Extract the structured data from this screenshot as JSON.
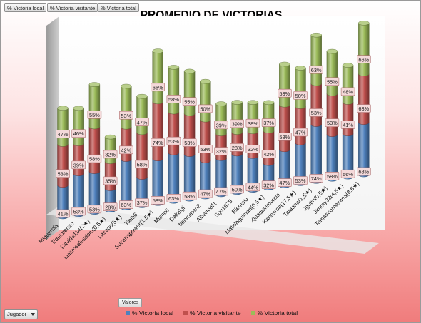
{
  "filter_buttons": [
    "% Victoria local",
    "% Victoria visitante",
    "% Victoria total"
  ],
  "values_button": "Valores",
  "row_field_button": "Jugador",
  "colors": {
    "local": "#4f81bd",
    "visitante": "#c0504d",
    "total": "#9bbb59",
    "label_bg": "#f4d9d9",
    "label_border": "#b07070"
  },
  "chart_data": {
    "type": "bar",
    "subtype": "3d-stacked-cylinder",
    "title": "PROMEDIO DE VICTORIAS",
    "categories": [
      "Miguerola",
      "Edulorenzo",
      "David3114(2★)",
      "Luisrosalesdom(0,5★)",
      "Lasago(5★)",
      "Tietti6",
      "Susanapower(1,5★)",
      "Mianc6",
      "Dakalgi",
      "benroman2",
      "Albertoaf1",
      "Sgu1975",
      "Elemalu",
      "Matalaguiman(0,5★)",
      "Xjoaquinmurcia",
      "Karlosroa(17,5★)",
      "Tataana(1,5★)",
      "Jgutin(0,5★)",
      "Jimmy32(4,5★)",
      "Tomascomesana(3,5★)"
    ],
    "series": [
      {
        "name": "% Victoria local",
        "values": [
          "41%",
          "53%",
          "53%",
          "28%",
          "63%",
          "37%",
          "58%",
          "63%",
          "58%",
          "47%",
          "47%",
          "50%",
          "44%",
          "32%",
          "47%",
          "53%",
          "74%",
          "58%",
          "56%",
          "68%"
        ]
      },
      {
        "name": "% Victoria visitante",
        "values": [
          "53%",
          "39%",
          "58%",
          "35%",
          "42%",
          "58%",
          "74%",
          "53%",
          "53%",
          "53%",
          "32%",
          "28%",
          "32%",
          "42%",
          "58%",
          "47%",
          "53%",
          "53%",
          "41%",
          "63%"
        ]
      },
      {
        "name": "% Victoria total",
        "values": [
          "47%",
          "46%",
          "55%",
          "32%",
          "53%",
          "47%",
          "66%",
          "58%",
          "55%",
          "50%",
          "39%",
          "39%",
          "38%",
          "37%",
          "53%",
          "50%",
          "63%",
          "55%",
          "48%",
          "66%"
        ]
      }
    ],
    "legend_position": "bottom",
    "grid": false
  }
}
